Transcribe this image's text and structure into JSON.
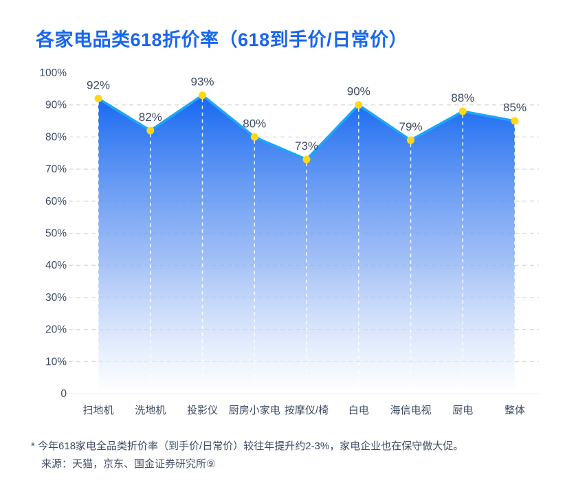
{
  "page": {
    "title": "各家电品类618折价率（618到手价/日常价）",
    "footnote": "* 今年618家电全品类折价率（到手价/日常价）较往年提升约2-3%，家电企业也在保守做大促。",
    "source": "来源：天猫，京东、国金证券研究所⑨"
  },
  "colors": {
    "title_blue": "#1966F0",
    "area_top": "#1567F1",
    "area_bottom": "#FAFCFF",
    "line_stroke": "#1FA6F6",
    "dot_yellow": "#FFD818",
    "grid_line": "#D9D9D9",
    "baseline": "#ECECEC",
    "axis_text": "#3D4A63",
    "vertical_dash": "rgba(255,255,255,0.85)"
  },
  "chart_data": {
    "type": "area",
    "title": "各家电品类618折价率（618到手价/日常价）",
    "categories": [
      "扫地机",
      "洗地机",
      "投影仪",
      "厨房小家电",
      "按摩仪/椅",
      "白电",
      "海信电视",
      "厨电",
      "整体"
    ],
    "values": [
      92,
      82,
      93,
      80,
      73,
      90,
      79,
      88,
      85
    ],
    "value_labels": [
      "92%",
      "82%",
      "93%",
      "80%",
      "73%",
      "90%",
      "79%",
      "88%",
      "85%"
    ],
    "y_tick_values": [
      100,
      90,
      80,
      70,
      60,
      50,
      40,
      30,
      20,
      10,
      0
    ],
    "y_tick_labels": [
      "100%",
      "90%",
      "80%",
      "70%",
      "60%",
      "50%",
      "40%",
      "30%",
      "20%",
      "10%",
      "0"
    ],
    "ylim": [
      0,
      100
    ],
    "xlabel": "",
    "ylabel": "",
    "grid": "horizontal-dashed (90% to 10%), no line at 100%, faint solid baseline at 0",
    "legend": "none",
    "marker": "yellow dot with white dashed drop line to baseline"
  }
}
